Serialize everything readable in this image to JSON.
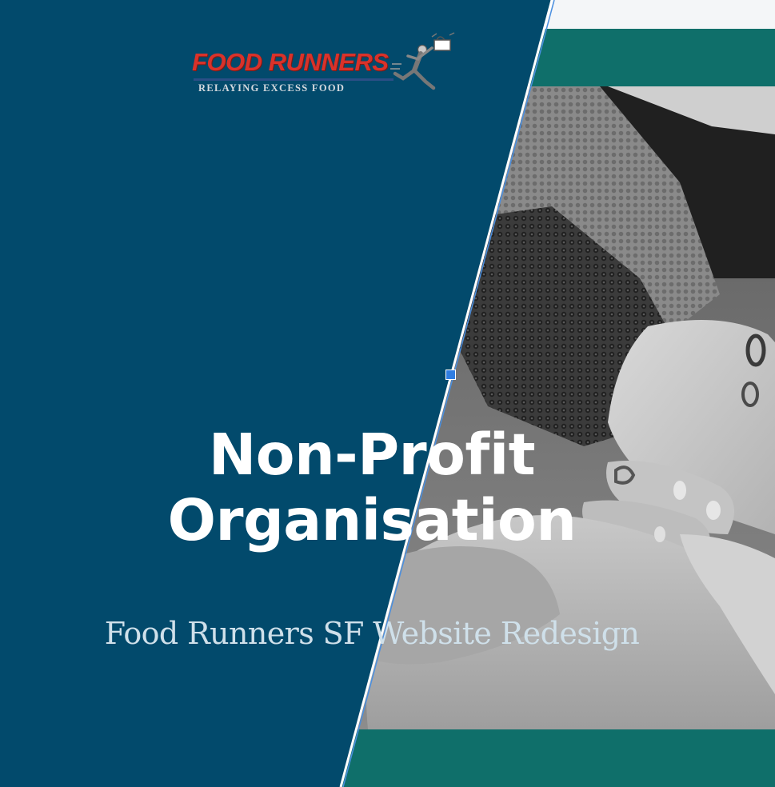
{
  "logo": {
    "title": "FOOD RUNNERS",
    "tagline": "RELAYING EXCESS FOOD",
    "icon": "runner-carrying-food-icon"
  },
  "hero": {
    "headline_line1": "Non-Profit",
    "headline_line2": "Organisation",
    "subtitle": "Food Runners SF Website Redesign"
  },
  "colors": {
    "panel_blue": "#024a6c",
    "accent_teal": "#0f6f6a",
    "logo_red": "#d9322a",
    "selection_handle": "#2f7de1"
  }
}
